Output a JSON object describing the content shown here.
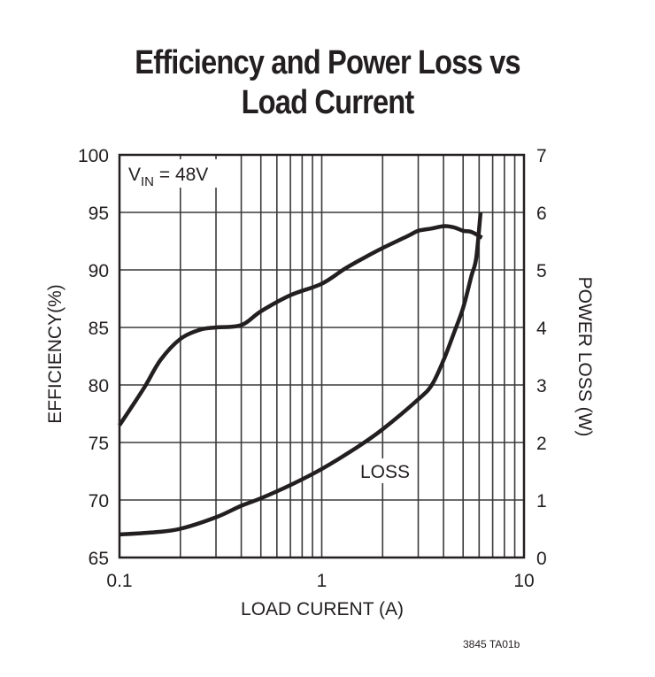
{
  "title_lines": [
    "Efficiency and Power Loss vs",
    "Load Current"
  ],
  "footer_code": "3845 TA01b",
  "annotation": {
    "vin_label": "V",
    "vin_sub": "IN",
    "vin_value": " = 48V",
    "loss_label": "LOSS"
  },
  "colors": {
    "ink": "#231f20",
    "grid": "#3a3a3a",
    "background": "#ffffff"
  },
  "chart_data": {
    "type": "line",
    "title": "Efficiency and Power Loss vs Load Current",
    "xlabel": "LOAD CURENT (A)",
    "ylabel": "EFFICIENCY(%)",
    "y2label": "POWER LOSS (W)",
    "xscale": "log",
    "xlim": [
      0.1,
      10
    ],
    "ylim": [
      65,
      100
    ],
    "y2lim": [
      0,
      7
    ],
    "x_ticks": [
      "0.1",
      "1",
      "10"
    ],
    "y_ticks": [
      "65",
      "70",
      "75",
      "80",
      "85",
      "90",
      "95",
      "100"
    ],
    "y2_ticks": [
      "0",
      "1",
      "2",
      "3",
      "4",
      "5",
      "6",
      "7"
    ],
    "grid": true,
    "annotations": [
      "VIN = 48V",
      "LOSS"
    ],
    "series": [
      {
        "name": "Efficiency",
        "axis": "left",
        "x": [
          0.1,
          0.12,
          0.135,
          0.16,
          0.2,
          0.25,
          0.3,
          0.4,
          0.5,
          0.7,
          1.0,
          1.3,
          1.6,
          2.0,
          2.7,
          3.0,
          3.5,
          4.0,
          4.5,
          5.0,
          5.5,
          6.2
        ],
        "values": [
          76.5,
          78.6,
          80.0,
          82.2,
          84.0,
          84.8,
          85.0,
          85.2,
          86.4,
          87.8,
          88.8,
          90.1,
          91.0,
          91.9,
          93.0,
          93.4,
          93.6,
          93.8,
          93.7,
          93.4,
          93.3,
          92.8
        ]
      },
      {
        "name": "Power Loss",
        "axis": "right",
        "x": [
          0.1,
          0.15,
          0.2,
          0.3,
          0.4,
          0.5,
          0.7,
          1.0,
          1.5,
          2.0,
          3.0,
          3.5,
          4.0,
          4.5,
          5.0,
          5.5,
          5.8,
          6.1
        ],
        "values": [
          0.4,
          0.44,
          0.5,
          0.7,
          0.9,
          1.03,
          1.26,
          1.54,
          1.92,
          2.23,
          2.75,
          3.0,
          3.43,
          3.9,
          4.34,
          4.9,
          5.2,
          6.0
        ]
      }
    ]
  }
}
